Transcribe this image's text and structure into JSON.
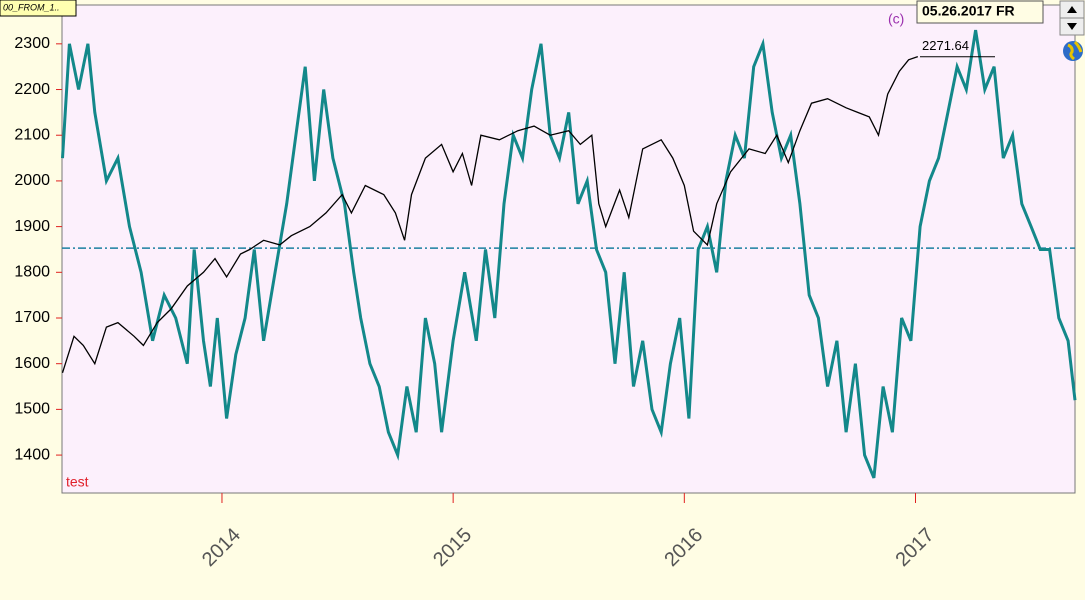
{
  "chart_data": {
    "type": "line",
    "tab_label": "00_FROM_1..",
    "date_label": "05.26.2017 FR",
    "copyright": "(c)",
    "indicator_label": "test",
    "last_value": 2271.64,
    "reference_line": 1853,
    "xlim": [
      2013.308,
      2017.69
    ],
    "xticks": [
      2014,
      2015,
      2016,
      2017
    ],
    "ylim": [
      1317,
      2385
    ],
    "yticks": [
      1400,
      1500,
      1600,
      1700,
      1800,
      1900,
      2000,
      2100,
      2200,
      2300
    ],
    "series": [
      {
        "color": "#000000",
        "x": [
          2013.31,
          2013.36,
          2013.4,
          2013.45,
          2013.5,
          2013.55,
          2013.62,
          2013.66,
          2013.72,
          2013.78,
          2013.85,
          2013.92,
          2013.97,
          2014.02,
          2014.08,
          2014.12,
          2014.18,
          2014.25,
          2014.3,
          2014.38,
          2014.45,
          2014.52,
          2014.56,
          2014.62,
          2014.7,
          2014.75,
          2014.79,
          2014.82,
          2014.88,
          2014.95,
          2015.0,
          2015.04,
          2015.08,
          2015.12,
          2015.2,
          2015.28,
          2015.35,
          2015.42,
          2015.5,
          2015.55,
          2015.6,
          2015.63,
          2015.66,
          2015.72,
          2015.76,
          2015.82,
          2015.9,
          2015.95,
          2016.0,
          2016.04,
          2016.1,
          2016.14,
          2016.2,
          2016.28,
          2016.35,
          2016.4,
          2016.45,
          2016.5,
          2016.55,
          2016.62,
          2016.7,
          2016.75,
          2016.8,
          2016.84,
          2016.88,
          2016.93,
          2016.97,
          2017.01
        ],
        "values": [
          1580,
          1660,
          1640,
          1600,
          1680,
          1690,
          1660,
          1640,
          1690,
          1720,
          1770,
          1800,
          1830,
          1790,
          1840,
          1850,
          1870,
          1860,
          1880,
          1900,
          1930,
          1970,
          1930,
          1990,
          1970,
          1930,
          1870,
          1970,
          2050,
          2080,
          2020,
          2060,
          1990,
          2100,
          2090,
          2110,
          2120,
          2100,
          2110,
          2080,
          2100,
          1950,
          1900,
          1980,
          1920,
          2070,
          2090,
          2050,
          1990,
          1890,
          1860,
          1950,
          2020,
          2070,
          2060,
          2100,
          2040,
          2110,
          2170,
          2180,
          2160,
          2150,
          2140,
          2100,
          2190,
          2240,
          2265,
          2272
        ]
      },
      {
        "name": "test",
        "color": "#13888a",
        "x": [
          2013.31,
          2013.34,
          2013.38,
          2013.42,
          2013.45,
          2013.5,
          2013.55,
          2013.6,
          2013.65,
          2013.7,
          2013.75,
          2013.8,
          2013.85,
          2013.88,
          2013.92,
          2013.95,
          2013.98,
          2014.02,
          2014.06,
          2014.1,
          2014.14,
          2014.18,
          2014.23,
          2014.28,
          2014.32,
          2014.36,
          2014.4,
          2014.44,
          2014.48,
          2014.53,
          2014.57,
          2014.6,
          2014.64,
          2014.68,
          2014.72,
          2014.76,
          2014.8,
          2014.84,
          2014.88,
          2014.92,
          2014.95,
          2015.0,
          2015.05,
          2015.1,
          2015.14,
          2015.18,
          2015.22,
          2015.26,
          2015.3,
          2015.34,
          2015.38,
          2015.42,
          2015.46,
          2015.5,
          2015.54,
          2015.58,
          2015.62,
          2015.66,
          2015.7,
          2015.74,
          2015.78,
          2015.82,
          2015.86,
          2015.9,
          2015.94,
          2015.98,
          2016.02,
          2016.06,
          2016.1,
          2016.14,
          2016.18,
          2016.22,
          2016.26,
          2016.3,
          2016.34,
          2016.38,
          2016.42,
          2016.46,
          2016.5,
          2016.54,
          2016.58,
          2016.62,
          2016.66,
          2016.7,
          2016.74,
          2016.78,
          2016.82,
          2016.86,
          2016.9,
          2016.94,
          2016.98,
          2017.02,
          2017.06,
          2017.1,
          2017.14,
          2017.18,
          2017.22,
          2017.26,
          2017.3,
          2017.34,
          2017.38,
          2017.42,
          2017.46,
          2017.5,
          2017.54,
          2017.58,
          2017.62,
          2017.66,
          2017.69
        ],
        "values": [
          2050,
          2300,
          2200,
          2300,
          2150,
          2000,
          2050,
          1900,
          1800,
          1650,
          1750,
          1700,
          1600,
          1850,
          1650,
          1550,
          1700,
          1480,
          1620,
          1700,
          1850,
          1650,
          1800,
          1950,
          2100,
          2250,
          2000,
          2200,
          2050,
          1950,
          1800,
          1700,
          1600,
          1550,
          1450,
          1400,
          1550,
          1450,
          1700,
          1600,
          1450,
          1650,
          1800,
          1650,
          1850,
          1700,
          1950,
          2100,
          2050,
          2200,
          2300,
          2100,
          2050,
          2150,
          1950,
          2000,
          1850,
          1800,
          1600,
          1800,
          1550,
          1650,
          1500,
          1450,
          1600,
          1700,
          1480,
          1850,
          1900,
          1800,
          2000,
          2100,
          2050,
          2250,
          2300,
          2150,
          2050,
          2100,
          1950,
          1750,
          1700,
          1550,
          1650,
          1450,
          1600,
          1400,
          1350,
          1550,
          1450,
          1700,
          1650,
          1900,
          2000,
          2050,
          2150,
          2250,
          2200,
          2330,
          2200,
          2250,
          2050,
          2100,
          1950,
          1900,
          1850,
          1850,
          1700,
          1650,
          1520
        ]
      }
    ]
  }
}
